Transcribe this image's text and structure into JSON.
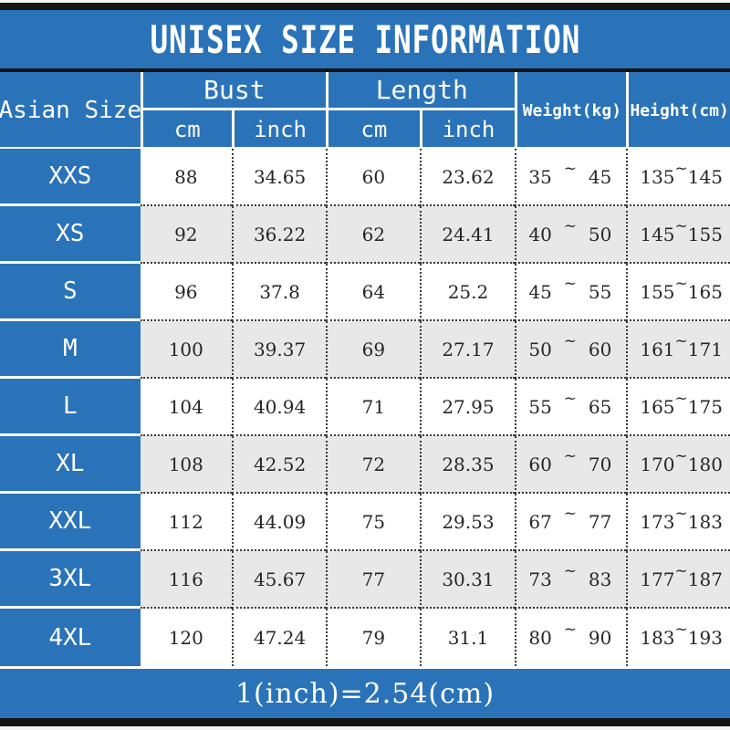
{
  "title": "UNISEX SIZE INFORMATION",
  "footer": "1(inch)=2.54(cm)",
  "colors": {
    "header_blue": "#2a73b9",
    "row_alternate": "#e8e8e8",
    "frame_black": "#141414",
    "header_text": "#ffffff",
    "data_text": "#262626"
  },
  "table": {
    "headers": {
      "asian_size": "Asian Size",
      "bust": "Bust",
      "length": "Length",
      "weight": "Weight(kg)",
      "height": "Height(cm)",
      "cm": "cm",
      "inch": "inch"
    },
    "tilde": "~",
    "rows": [
      {
        "size": "XXS",
        "bust_cm": "88",
        "bust_inch": "34.65",
        "length_cm": "60",
        "length_inch": "23.62",
        "weight_min": "35",
        "weight_max": "45",
        "height_min": "135",
        "height_max": "145"
      },
      {
        "size": "XS",
        "bust_cm": "92",
        "bust_inch": "36.22",
        "length_cm": "62",
        "length_inch": "24.41",
        "weight_min": "40",
        "weight_max": "50",
        "height_min": "145",
        "height_max": "155"
      },
      {
        "size": "S",
        "bust_cm": "96",
        "bust_inch": "37.8",
        "length_cm": "64",
        "length_inch": "25.2",
        "weight_min": "45",
        "weight_max": "55",
        "height_min": "155",
        "height_max": "165"
      },
      {
        "size": "M",
        "bust_cm": "100",
        "bust_inch": "39.37",
        "length_cm": "69",
        "length_inch": "27.17",
        "weight_min": "50",
        "weight_max": "60",
        "height_min": "161",
        "height_max": "171"
      },
      {
        "size": "L",
        "bust_cm": "104",
        "bust_inch": "40.94",
        "length_cm": "71",
        "length_inch": "27.95",
        "weight_min": "55",
        "weight_max": "65",
        "height_min": "165",
        "height_max": "175"
      },
      {
        "size": "XL",
        "bust_cm": "108",
        "bust_inch": "42.52",
        "length_cm": "72",
        "length_inch": "28.35",
        "weight_min": "60",
        "weight_max": "70",
        "height_min": "170",
        "height_max": "180"
      },
      {
        "size": "XXL",
        "bust_cm": "112",
        "bust_inch": "44.09",
        "length_cm": "75",
        "length_inch": "29.53",
        "weight_min": "67",
        "weight_max": "77",
        "height_min": "173",
        "height_max": "183"
      },
      {
        "size": "3XL",
        "bust_cm": "116",
        "bust_inch": "45.67",
        "length_cm": "77",
        "length_inch": "30.31",
        "weight_min": "73",
        "weight_max": "83",
        "height_min": "177",
        "height_max": "187"
      },
      {
        "size": "4XL",
        "bust_cm": "120",
        "bust_inch": "47.24",
        "length_cm": "79",
        "length_inch": "31.1",
        "weight_min": "80",
        "weight_max": "90",
        "height_min": "183",
        "height_max": "193"
      }
    ]
  }
}
